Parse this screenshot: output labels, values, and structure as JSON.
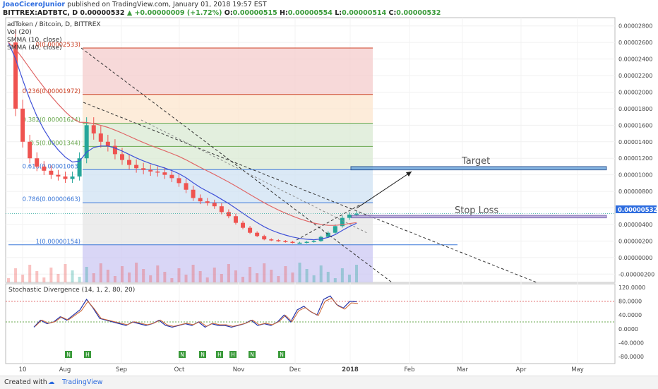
{
  "header": {
    "user": "JoaoCiceroJunior",
    "published": "published on TradingView.com, January 01, 2018 19:57 EST",
    "symbol": "BITTREX:ADTBTC, D",
    "price": "0.00000532",
    "change": "+0.00000009 (+1.72%)",
    "o_label": "O:",
    "o_value": "0.00000515",
    "h_label": "H:",
    "h_value": "0.00000554",
    "l_label": "L:",
    "l_value": "0.00000514",
    "c_label": "C:",
    "c_value": "0.00000532"
  },
  "legend": {
    "title": "adToken / Bitcoin, D, BITTREX",
    "vol": "Vol (20)",
    "smma10": "SMMA (10, close)",
    "smma40": "SMMA (40, close)"
  },
  "annotations": {
    "target": "Target",
    "stop_loss": "Stop Loss"
  },
  "price_tag": "0.00000532",
  "oscillator": {
    "title": "Stochastic Divergence (14, 1, 2, 80, 20)"
  },
  "footer": {
    "created_with": "Created with",
    "brand": "TradingView"
  },
  "colors": {
    "up": "#26a69a",
    "down": "#ef5350",
    "smma10": "#3f51d8",
    "smma40": "#e06666",
    "target_box": "#6fa8dc",
    "stop_box": "#b4a7d6",
    "price_tag": "#2d6cdf"
  },
  "chart_data": [
    {
      "type": "candlestick",
      "ylim": [
        -3e-06,
        2.9e-06
      ],
      "y_ticks": [
        "0.00002800",
        "0.00002600",
        "0.00002400",
        "0.00002200",
        "0.00002000",
        "0.00001800",
        "0.00001600",
        "0.00001400",
        "0.00001200",
        "0.00001000",
        "0.00000800",
        "0.00000600",
        "0.00000400",
        "0.00000200",
        "0.00000000",
        "-0.00000200"
      ],
      "x_ticks": [
        "10",
        "Aug",
        "Sep",
        "Oct",
        "Nov",
        "Dec",
        "2018",
        "Feb",
        "Mar",
        "Apr",
        "May"
      ],
      "close_series": [
        2.6e-05,
        1.8e-05,
        1.4e-05,
        1.2e-05,
        1.1e-05,
        1.05e-05,
        1e-05,
        9.8e-06,
        9.5e-06,
        9.8e-06,
        1.2e-05,
        1.6e-05,
        1.5e-05,
        1.4e-05,
        1.35e-05,
        1.25e-05,
        1.18e-05,
        1.12e-05,
        1.08e-05,
        1.06e-05,
        1.04e-05,
        1.03e-05,
        1e-05,
        9.6e-06,
        9e-06,
        8.2e-06,
        7.2e-06,
        6.8e-06,
        6.6e-06,
        6.2e-06,
        5.5e-06,
        5e-06,
        4.2e-06,
        3.6e-06,
        3e-06,
        2.6e-06,
        2.2e-06,
        2.1e-06,
        2e-06,
        1.9e-06,
        1.8e-06,
        1.8e-06,
        1.9e-06,
        2e-06,
        2.5e-06,
        3e-06,
        3.8e-06,
        4.8e-06,
        5.2e-06,
        5.3e-06
      ],
      "fibonacci": [
        {
          "level": "0",
          "value": 2.533e-05,
          "label": "0(0.00002533)"
        },
        {
          "level": "0.236",
          "value": 1.972e-05,
          "label": "0.236(0.00001972)"
        },
        {
          "level": "0.382",
          "value": 1.624e-05,
          "label": "0.382(0.00001624)"
        },
        {
          "level": "0.5",
          "value": 1.344e-05,
          "label": "0.5(0.00001344)"
        },
        {
          "level": "0.618",
          "value": 1.063e-05,
          "label": "0.618(0.00001063)"
        },
        {
          "level": "0.786",
          "value": 6.63e-06,
          "label": "0.786(0.00000663)"
        },
        {
          "level": "1",
          "value": 1.54e-06,
          "label": "1(0.00000154)"
        }
      ],
      "target_zone": [
        1.06e-05,
        1.1e-05
      ],
      "stop_loss_zone": [
        4.8e-06,
        5.1e-06
      ],
      "last_price": 5.32e-06
    },
    {
      "type": "line",
      "title": "Stochastic Divergence (14, 1, 2, 80, 20)",
      "ylim": [
        -100,
        120
      ],
      "y_ticks": [
        "120.0000",
        "80.0000",
        "40.0000",
        "0.0000",
        "-40.0000",
        "-80.0000"
      ],
      "overbought": 80,
      "oversold": 20,
      "series": [
        {
          "values": [
            5,
            25,
            15,
            20,
            35,
            25,
            40,
            55,
            85,
            60,
            30,
            25,
            20,
            15,
            10,
            20,
            15,
            10,
            15,
            25,
            10,
            5,
            10,
            15,
            10,
            20,
            5,
            15,
            10,
            10,
            5,
            10,
            15,
            25,
            10,
            15,
            10,
            20,
            40,
            20,
            55,
            65,
            50,
            40,
            85,
            95,
            70,
            60,
            80,
            78
          ]
        }
      ],
      "signal_markers": [
        "N",
        "H",
        "N",
        "N",
        "H",
        "H",
        "N",
        "N"
      ]
    }
  ]
}
